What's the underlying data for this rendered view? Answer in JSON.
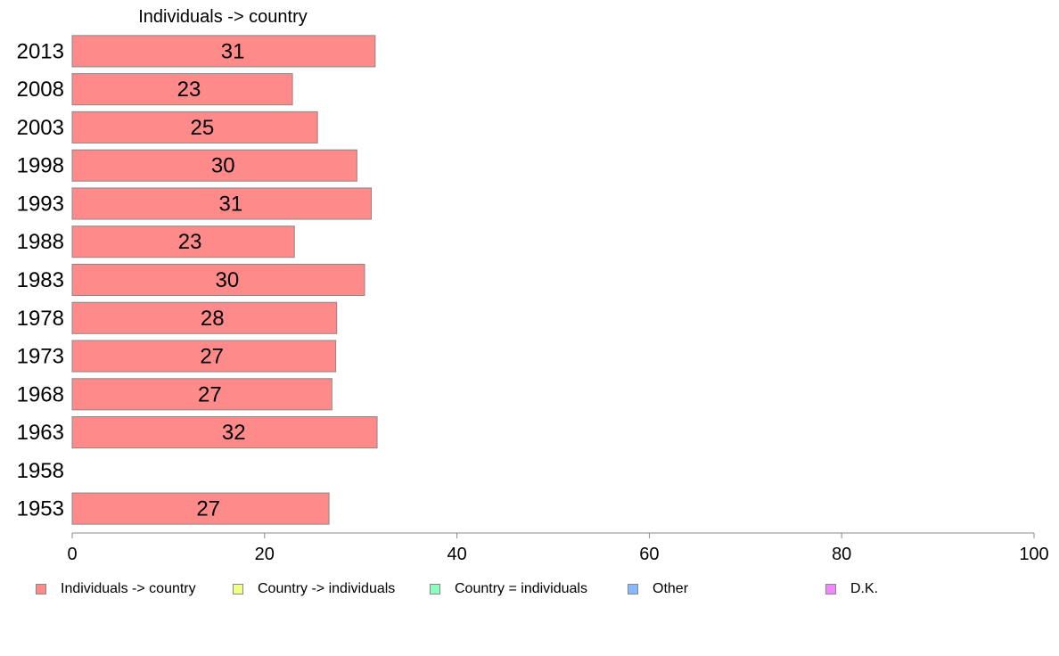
{
  "chart_data": {
    "type": "bar",
    "orientation": "horizontal",
    "title": "Individuals -> country",
    "categories": [
      "2013",
      "2008",
      "2003",
      "1998",
      "1993",
      "1988",
      "1983",
      "1978",
      "1973",
      "1968",
      "1963",
      "1958",
      "1953"
    ],
    "series": [
      {
        "name": "Individuals -> country",
        "color": "#ff8a8a",
        "values": [
          31.5,
          22.9,
          25.5,
          29.6,
          31.1,
          23.1,
          30.4,
          27.5,
          27.4,
          27.0,
          31.7,
          null,
          26.7
        ],
        "labels": [
          "31",
          "23",
          "25",
          "30",
          "31",
          "23",
          "30",
          "28",
          "27",
          "27",
          "32",
          "",
          "27"
        ]
      }
    ],
    "xlim": [
      0,
      100
    ],
    "xticks": [
      "0",
      "20",
      "40",
      "60",
      "80",
      "100"
    ],
    "xlabel": "",
    "ylabel": "",
    "grid": false,
    "legend_position": "bottom"
  },
  "legend": [
    {
      "label": "Individuals -> country",
      "color": "#ff8a8a"
    },
    {
      "label": "Country -> individuals",
      "color": "#f0ff88"
    },
    {
      "label": "Country = individuals",
      "color": "#8cffc0"
    },
    {
      "label": "Other",
      "color": "#88b8ff"
    },
    {
      "label": "D.K.",
      "color": "#f088ff"
    }
  ]
}
